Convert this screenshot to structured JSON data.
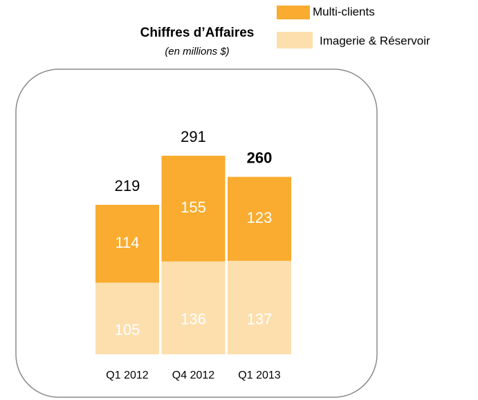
{
  "chart_data": {
    "type": "stacked_bar",
    "title": "Chiffres d’Affaires",
    "subtitle": "(en millions $)",
    "categories": [
      "Q1 2012",
      "Q4 2012",
      "Q1 2013"
    ],
    "series": [
      {
        "name": "Imagerie & Réservoir",
        "color": "#fddfae",
        "values": [
          105,
          136,
          137
        ]
      },
      {
        "name": "Multi-clients",
        "color": "#f9ac2f",
        "values": [
          114,
          155,
          123
        ]
      }
    ],
    "totals": [
      219,
      291,
      260
    ]
  }
}
